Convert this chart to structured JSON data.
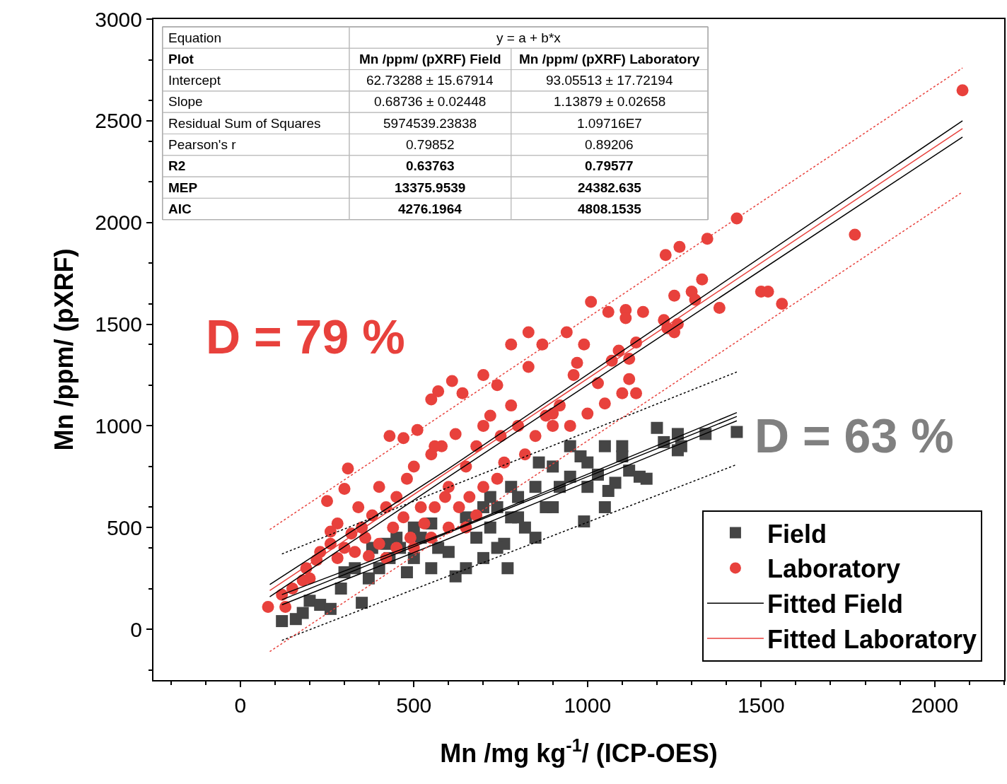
{
  "chart_data": {
    "type": "scatter",
    "xlabel": "Mn /mg kg$^{-1}$/ (ICP-OES)",
    "ylabel": "Mn /ppm/ (pXRF)",
    "xlim": [
      -250,
      2200
    ],
    "xticks": [
      0,
      500,
      1000,
      1500,
      2000
    ],
    "ylim": [
      -250,
      3000
    ],
    "yticks": [
      0,
      500,
      1000,
      1500,
      2000,
      2500,
      3000
    ],
    "grid": false,
    "legend": "bottom right",
    "annotations": [
      "D = 79 %",
      "D = 63 %",
      "Equation",
      "y = a + b*x",
      "Plot",
      "Mn /ppm/ (pXRF) Field",
      "Mn /ppm/ (pXRF) Laboratory",
      "Intercept",
      "62.73288 ± 15.67914",
      "93.05513 ± 17.72194",
      "Slope",
      "0.68736 ± 0.02448",
      "1.13879 ± 0.02658",
      "Residual Sum of Squares",
      "5974539.23838",
      "1.09716E7",
      "Pearson's r",
      "0.79852",
      "0.89206",
      "R2",
      "0.63763",
      "0.79577",
      "MEP",
      "13375.9539",
      "24382.635",
      "AIC",
      "4276.1964",
      "4808.1535"
    ],
    "series": [
      {
        "name": "Field",
        "marker": "square",
        "color": "#454545",
        "x": [
          120,
          160,
          180,
          200,
          230,
          260,
          290,
          350,
          300,
          330,
          370,
          400,
          430,
          460,
          480,
          500,
          520,
          550,
          570,
          600,
          620,
          650,
          680,
          700,
          720,
          740,
          760,
          780,
          800,
          820,
          850,
          880,
          900,
          920,
          950,
          980,
          1000,
          1030,
          1050,
          1060,
          1080,
          1100,
          1120,
          1150,
          1170,
          1200,
          1220,
          1260,
          1270,
          1340,
          1430,
          1260,
          1100,
          1050,
          990,
          740,
          770,
          850,
          900,
          950,
          1000,
          600,
          550,
          500,
          450,
          420,
          380,
          700,
          650,
          800,
          860,
          780,
          720
        ],
        "values": [
          40,
          50,
          80,
          140,
          120,
          100,
          200,
          130,
          280,
          300,
          250,
          300,
          350,
          400,
          280,
          350,
          450,
          300,
          400,
          380,
          260,
          300,
          450,
          350,
          500,
          600,
          420,
          550,
          650,
          500,
          700,
          600,
          800,
          700,
          900,
          850,
          820,
          760,
          600,
          680,
          720,
          900,
          780,
          750,
          740,
          990,
          920,
          960,
          900,
          960,
          970,
          880,
          850,
          900,
          530,
          400,
          300,
          450,
          600,
          750,
          700,
          null,
          520,
          500,
          450,
          420,
          400,
          600,
          550,
          550,
          820,
          700,
          650
        ]
      },
      {
        "name": "Laboratory",
        "marker": "circle",
        "color": "#e8413c",
        "x": [
          2080,
          1770,
          1430,
          1345,
          1265,
          1225,
          1500,
          1520,
          1560,
          1380,
          1330,
          1300,
          1310,
          1250,
          1220,
          1260,
          1250,
          1230,
          1160,
          1110,
          1110,
          1060,
          1010,
          1140,
          1090,
          1120,
          1070,
          990,
          940,
          870,
          830,
          830,
          780,
          740,
          700,
          640,
          610,
          570,
          550,
          970,
          960,
          1030,
          1050,
          1100,
          1140,
          1120,
          900,
          1000,
          310,
          250,
          80,
          120,
          130,
          150,
          190,
          200,
          230,
          260,
          280,
          300,
          320,
          350,
          380,
          400,
          420,
          450,
          480,
          500,
          520,
          550,
          580,
          600,
          620,
          650,
          680,
          700,
          720,
          750,
          780,
          800,
          820,
          850,
          880,
          900,
          920,
          950,
          430,
          470,
          510,
          560,
          400,
          440,
          470,
          490,
          530,
          560,
          590,
          630,
          660,
          700,
          740,
          760,
          370,
          340,
          300,
          280,
          260,
          220,
          180,
          650,
          680,
          600,
          550,
          500,
          450,
          420,
          360,
          330
        ],
        "values": [
          2650,
          1940,
          2020,
          1920,
          1880,
          1840,
          1660,
          1660,
          1600,
          1580,
          1720,
          1660,
          1620,
          1640,
          1520,
          1500,
          1460,
          1480,
          1560,
          1570,
          1530,
          1560,
          1610,
          1410,
          1370,
          1330,
          1320,
          1400,
          1460,
          1400,
          1460,
          1290,
          1400,
          1200,
          1250,
          1160,
          1220,
          1170,
          1130,
          1310,
          1250,
          1210,
          1110,
          1160,
          1160,
          1230,
          1060,
          1060,
          790,
          630,
          110,
          170,
          110,
          200,
          300,
          250,
          380,
          420,
          350,
          400,
          470,
          500,
          560,
          700,
          600,
          650,
          740,
          800,
          600,
          860,
          900,
          700,
          960,
          800,
          900,
          1000,
          1050,
          950,
          1100,
          1000,
          860,
          950,
          1050,
          1000,
          1100,
          1000,
          950,
          940,
          980,
          900,
          420,
          500,
          550,
          450,
          520,
          600,
          650,
          600,
          650,
          700,
          740,
          820,
          360,
          600,
          690,
          520,
          480,
          340,
          240,
          500,
          560,
          500,
          450,
          400,
          400,
          350,
          450,
          380
        ]
      },
      {
        "name": "Fitted Field",
        "type": "line",
        "marker": "none",
        "color": "#000000",
        "x": [
          120,
          1430
        ],
        "values": [
          145,
          1046
        ]
      },
      {
        "name": "Fitted Laboratory",
        "type": "line",
        "marker": "none",
        "color": "#e8413c",
        "x": [
          85,
          2080
        ],
        "values": [
          190,
          2462
        ]
      },
      {
        "type": "line",
        "marker": "none",
        "color": "#000000",
        "x": [
          120,
          600,
          1430
        ],
        "values": [
          170,
          480,
          1065
        ]
      },
      {
        "type": "line",
        "marker": "none",
        "color": "#000000",
        "x": [
          120,
          600,
          1430
        ],
        "values": [
          120,
          445,
          1025
        ]
      },
      {
        "type": "line",
        "marker": "none",
        "color": "#000000",
        "x": [
          85,
          600,
          2080
        ],
        "values": [
          220,
          790,
          2500
        ]
      },
      {
        "type": "line",
        "marker": "none",
        "color": "#000000",
        "x": [
          85,
          600,
          2080
        ],
        "values": [
          160,
          750,
          2420
        ]
      },
      {
        "type": "line",
        "marker": "none",
        "line_style": "dotted",
        "color": "#000000",
        "x": [
          120,
          1430
        ],
        "values": [
          370,
          1265
        ]
      },
      {
        "type": "line",
        "marker": "none",
        "line_style": "dotted",
        "color": "#000000",
        "x": [
          120,
          1430
        ],
        "values": [
          -55,
          810
        ]
      },
      {
        "type": "line",
        "marker": "none",
        "line_style": "dotted",
        "color": "#e8413c",
        "x": [
          85,
          2080
        ],
        "values": [
          490,
          2760
        ]
      },
      {
        "type": "line",
        "marker": "none",
        "line_style": "dotted",
        "color": "#e8413c",
        "x": [
          85,
          2080
        ],
        "values": [
          -110,
          2150
        ]
      }
    ]
  }
}
